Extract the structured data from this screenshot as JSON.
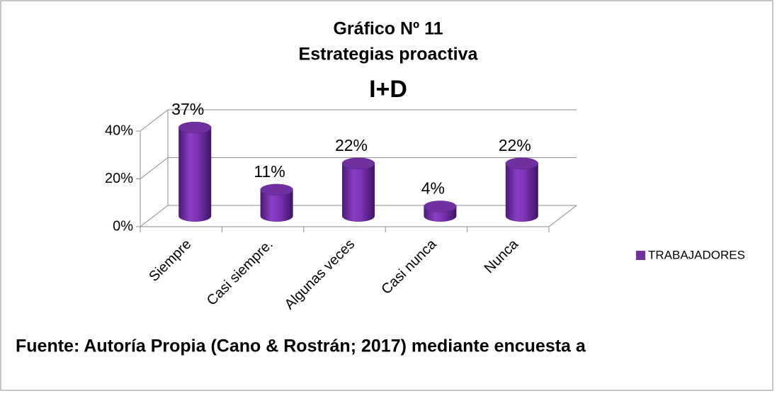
{
  "chart_data": {
    "type": "bar",
    "title": "Gráfico Nº 11",
    "subtitle": "Estrategias proactiva",
    "annotation": "I+D",
    "categories": [
      "Siempre",
      "Casi siempre.",
      "Algunas veces",
      "Casi nunca",
      "Nunca"
    ],
    "series": [
      {
        "name": "TRABAJADORES",
        "color": "#7030a0",
        "values": [
          37,
          11,
          22,
          4,
          22
        ],
        "value_labels": [
          "37%",
          "11%",
          "22%",
          "4%",
          "22%"
        ]
      }
    ],
    "ylim": [
      0,
      40
    ],
    "yticks": [
      {
        "value": 0,
        "label": "0%"
      },
      {
        "value": 20,
        "label": "20%"
      },
      {
        "value": 40,
        "label": "40%"
      }
    ],
    "grid": true,
    "legend": "right",
    "source": "Fuente: Autoría Propia (Cano & Rostrán; 2017) mediante encuesta a"
  }
}
